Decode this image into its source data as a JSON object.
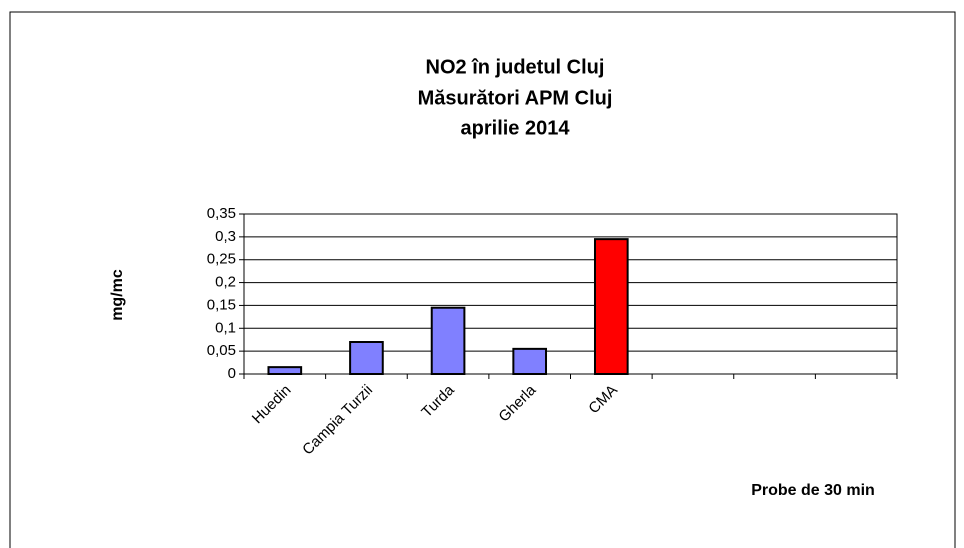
{
  "chart_data": {
    "type": "bar",
    "title": [
      "NO2 în judetul Cluj",
      "Măsurători  APM Cluj",
      "aprilie  2014"
    ],
    "y_label": "mg/mc",
    "x_label": "Probe de 30 min",
    "categories": [
      "Huedin",
      "Campia Turzii",
      "Turda",
      "Gherla",
      "CMA",
      null,
      null,
      null
    ],
    "values": [
      0.015,
      0.07,
      0.145,
      0.055,
      0.295,
      null,
      null,
      null
    ],
    "colors": [
      "#8080ff",
      "#8080ff",
      "#8080ff",
      "#8080ff",
      "#ff0000",
      null,
      null,
      null
    ],
    "ylim": [
      0,
      0.35
    ],
    "yticks": [
      0,
      {
        "value": 0.05,
        "label": "0,05"
      },
      {
        "value": 0.1,
        "label": "0,1"
      },
      {
        "value": 0.15,
        "label": "0,15"
      },
      {
        "value": 0.2,
        "label": "0,2"
      },
      {
        "value": 0.25,
        "label": "0,25"
      },
      {
        "value": 0.3,
        "label": "0,3"
      },
      {
        "value": 0.35,
        "label": "0,35"
      }
    ],
    "grid": true
  }
}
